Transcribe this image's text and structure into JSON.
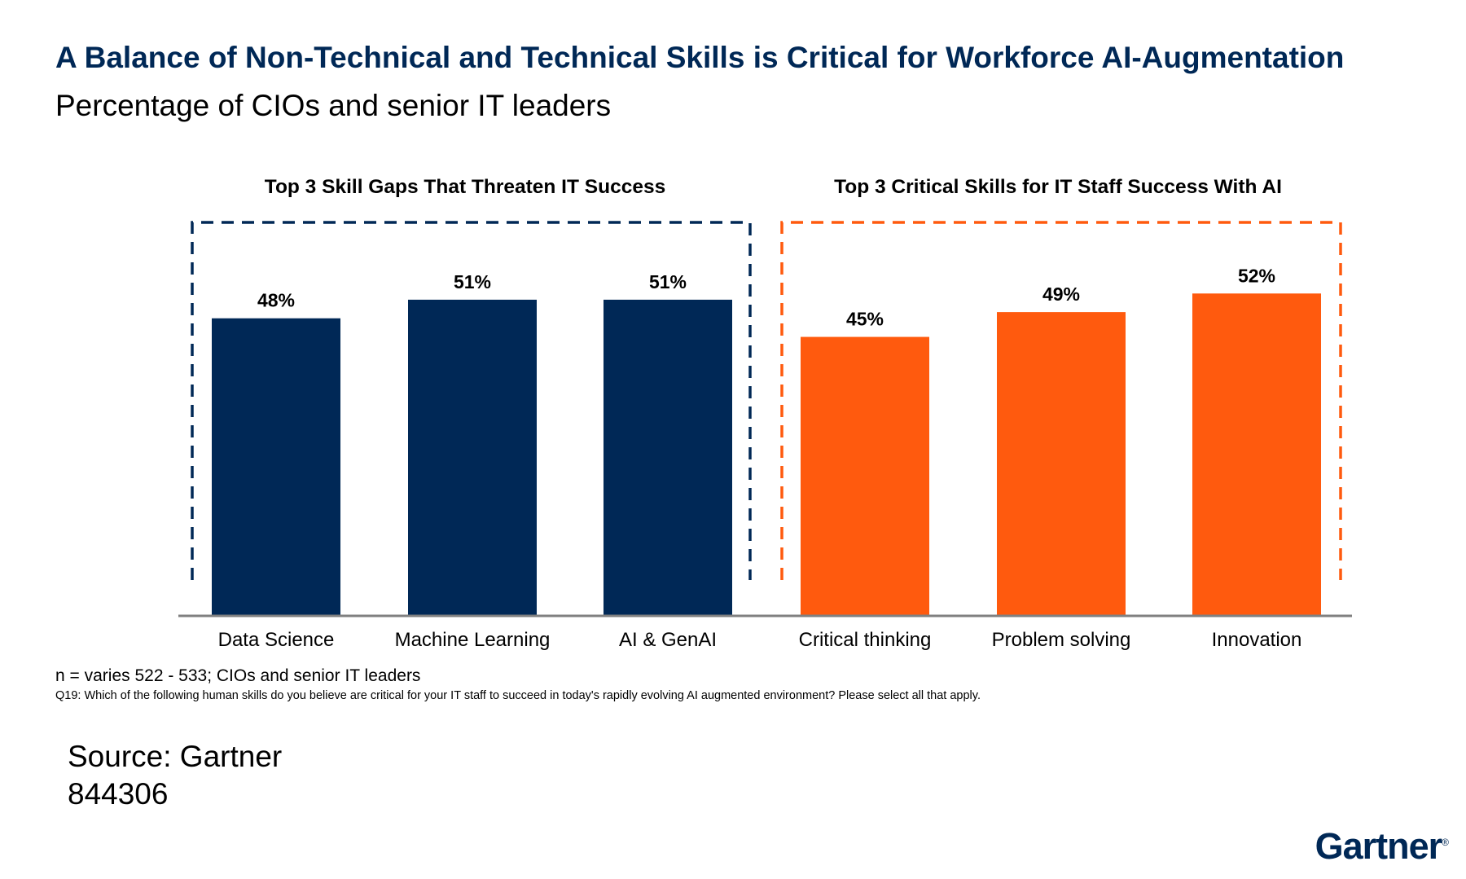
{
  "title": "A Balance of Non-Technical and Technical Skills is Critical for Workforce AI-Augmentation",
  "subtitle": "Percentage of CIOs and senior IT leaders",
  "colors": {
    "navy": "#002856",
    "orange": "#FF5A0E",
    "axis": "#808080"
  },
  "chart_data": {
    "type": "bar",
    "unit": "%",
    "categories": [
      "Data Science",
      "Machine Learning",
      "AI & GenAI",
      "Critical thinking",
      "Problem solving",
      "Innovation"
    ],
    "values": [
      48,
      51,
      51,
      45,
      49,
      52
    ],
    "value_labels": [
      "48%",
      "51%",
      "51%",
      "45%",
      "49%",
      "52%"
    ],
    "groups": [
      {
        "title": "Top 3 Skill Gaps That Threaten IT Success",
        "categories": [
          "Data Science",
          "Machine Learning",
          "AI & GenAI"
        ],
        "color": "#002856"
      },
      {
        "title": "Top 3 Critical Skills for IT Staff Success With AI",
        "categories": [
          "Critical thinking",
          "Problem solving",
          "Innovation"
        ],
        "color": "#FF5A0E"
      }
    ],
    "ylim": [
      0,
      100
    ],
    "grid": false,
    "legend": "none"
  },
  "footnote": {
    "n": "n = varies 522 - 533; CIOs and senior IT leaders",
    "question": "Q19: Which of the following human skills do you believe are critical for your IT staff to succeed in today's rapidly evolving AI augmented environment? Please select all that apply."
  },
  "source": {
    "line1": "Source: Gartner",
    "line2": "844306"
  },
  "brand": {
    "name": "Gartner",
    "mark": "®"
  }
}
